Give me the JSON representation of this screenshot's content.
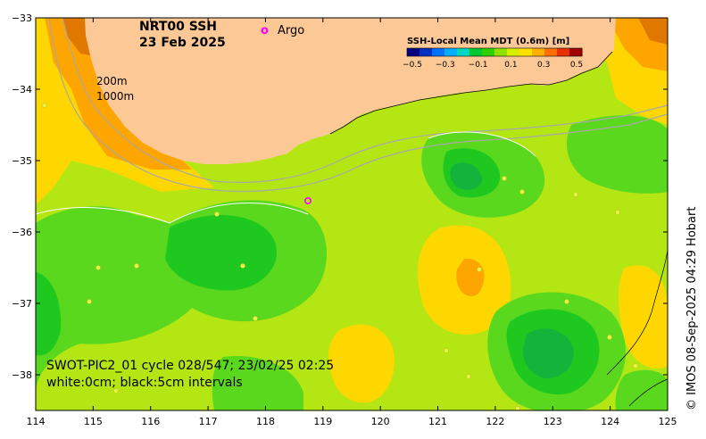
{
  "title": {
    "product": "NRT00 SSH",
    "date": "23 Feb 2025"
  },
  "legend": {
    "argo_symbol": "o",
    "argo_label": "Argo",
    "colorbar_title": "SSH-Local Mean MDT (0.6m) [m]",
    "colorbar_ticks": [
      "−0.5",
      "−0.3",
      "−0.1",
      "0.1",
      "0.3",
      "0.5"
    ],
    "colorbar_colors": [
      "#000080",
      "#0030c0",
      "#0070ff",
      "#00b0ff",
      "#00d8c0",
      "#00c830",
      "#30d000",
      "#90e000",
      "#d8ee00",
      "#ffe000",
      "#ffb000",
      "#ff7000",
      "#e83000",
      "#a00000"
    ]
  },
  "depth_labels": {
    "contour_1": "200m",
    "contour_2": "1000m"
  },
  "swath_caption": {
    "line1": "SWOT-PIC2_01 cycle 028/547; 23/02/25 02:25",
    "line2": "white:0cm; black:5cm intervals"
  },
  "credit": "© IMOS 08-Sep-2025 04:29 Hobart",
  "axes": {
    "x_ticks": [
      "114",
      "115",
      "116",
      "117",
      "118",
      "119",
      "120",
      "121",
      "122",
      "123",
      "124",
      "125"
    ],
    "y_ticks": [
      "−33",
      "−34",
      "−35",
      "−36",
      "−37",
      "−38"
    ]
  },
  "colors": {
    "land": "#fcc896",
    "background_field": "#b4e614",
    "high": "#ffd700",
    "higher": "#ffa500",
    "peak": "#e07800",
    "low": "#5ad81e",
    "lower": "#1ec81e",
    "trough": "#14b43c",
    "argo": "#ff00ff"
  }
}
